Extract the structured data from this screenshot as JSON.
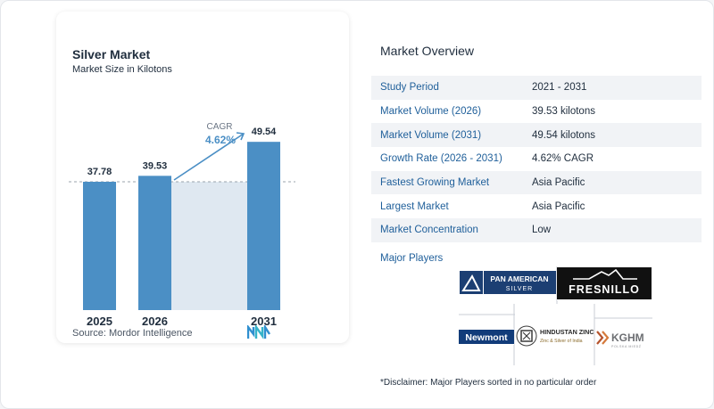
{
  "chart_card": {
    "title": "Silver Market",
    "subtitle": "Market Size in Kilotons",
    "source": "Source:  Mordor Intelligence",
    "cagr_label": "CAGR",
    "cagr_value": "4.62%"
  },
  "chart_data": {
    "type": "bar",
    "title": "Silver Market",
    "subtitle": "Market Size in Kilotons",
    "categories": [
      "2025",
      "2026",
      "2031"
    ],
    "values": [
      37.78,
      39.53,
      49.54
    ],
    "value_labels": [
      "37.78",
      "39.53",
      "49.54"
    ],
    "xlabel": "",
    "ylabel": "",
    "reference_line": 37.78,
    "cagr": "4.62%",
    "colors": {
      "bar": "#4b8fc5",
      "highlight_band": "#dfe8f1",
      "arrow": "#4b8fc5",
      "cagr_text": "#4b8fc5"
    }
  },
  "overview": {
    "title": "Market Overview",
    "rows": [
      {
        "key": "Study Period",
        "value": "2021 - 2031"
      },
      {
        "key": "Market Volume (2026)",
        "value": "39.53 kilotons"
      },
      {
        "key": "Market Volume (2031)",
        "value": "49.54 kilotons"
      },
      {
        "key": "Growth Rate (2026 - 2031)",
        "value": "4.62% CAGR"
      },
      {
        "key": "Fastest Growing Market",
        "value": "Asia Pacific"
      },
      {
        "key": "Largest Market",
        "value": "Asia Pacific"
      },
      {
        "key": "Market Concentration",
        "value": "Low"
      }
    ],
    "players_label": "Major Players",
    "disclaimer": "*Disclaimer: Major Players sorted in no particular order"
  },
  "players": [
    {
      "name": "PAN AMERICAN SILVER",
      "line1": "PAN AMERICAN",
      "line2": "SILVER",
      "icon": "pan-american-logo-icon"
    },
    {
      "name": "FRESNILLO",
      "icon": "fresnillo-logo-icon"
    },
    {
      "name": "Newmont",
      "icon": "newmont-logo-icon"
    },
    {
      "name": "HINDUSTAN ZINC",
      "line2": "Zinc & Silver of India",
      "icon": "hindustan-zinc-logo-icon"
    },
    {
      "name": "KGHM",
      "line2": "POLSKA MIEDŹ",
      "icon": "kghm-logo-icon"
    }
  ]
}
